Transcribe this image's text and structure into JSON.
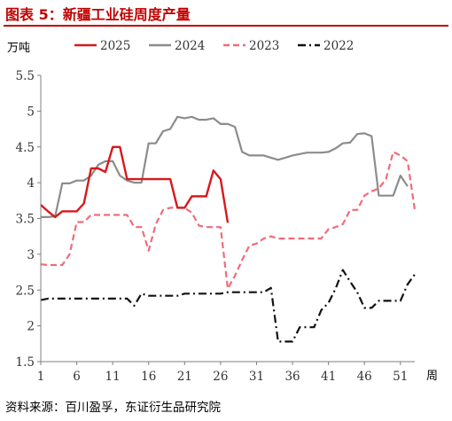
{
  "header": {
    "title": "图表 5：新疆工业硅周度产量",
    "source": "资料来源：百川盈孚，东证衍生品研究院"
  },
  "chart_data": {
    "type": "line",
    "title": "",
    "xlabel": "周",
    "ylabel": "万吨",
    "xlim": [
      1,
      53
    ],
    "ylim": [
      1.5,
      5.5
    ],
    "x_ticks": [
      1,
      6,
      11,
      16,
      21,
      26,
      31,
      36,
      41,
      46,
      51
    ],
    "y_ticks": [
      1.5,
      2,
      2.5,
      3,
      3.5,
      4,
      4.5,
      5,
      5.5
    ],
    "legend_position": "top",
    "grid": false,
    "series": [
      {
        "name": "2025",
        "color": "#d7191c",
        "dash": "solid",
        "x": [
          1,
          2,
          3,
          4,
          5,
          6,
          7,
          8,
          9,
          10,
          11,
          12,
          13,
          14,
          15,
          16,
          17,
          18,
          19,
          20,
          21,
          22,
          23,
          24,
          25,
          26,
          27
        ],
        "y": [
          3.69,
          3.6,
          3.52,
          3.6,
          3.6,
          3.6,
          3.71,
          4.2,
          4.2,
          4.15,
          4.5,
          4.5,
          4.05,
          4.05,
          4.05,
          4.05,
          4.05,
          4.05,
          4.05,
          3.65,
          3.65,
          3.81,
          3.81,
          3.81,
          4.17,
          4.05,
          3.44
        ]
      },
      {
        "name": "2024",
        "color": "#8c8c8c",
        "dash": "solid",
        "x": [
          1,
          2,
          3,
          4,
          5,
          6,
          7,
          8,
          9,
          10,
          11,
          12,
          13,
          14,
          15,
          16,
          17,
          18,
          19,
          20,
          21,
          22,
          23,
          24,
          25,
          26,
          27,
          28,
          29,
          30,
          31,
          32,
          33,
          34,
          35,
          36,
          37,
          38,
          39,
          40,
          41,
          42,
          43,
          44,
          45,
          46,
          47,
          48,
          49,
          50,
          51,
          52
        ],
        "y": [
          3.52,
          3.52,
          3.53,
          3.99,
          3.99,
          4.03,
          4.03,
          4.1,
          4.25,
          4.3,
          4.3,
          4.1,
          4.03,
          4.0,
          4.0,
          4.55,
          4.55,
          4.72,
          4.75,
          4.92,
          4.9,
          4.92,
          4.88,
          4.88,
          4.9,
          4.82,
          4.82,
          4.78,
          4.43,
          4.38,
          4.38,
          4.38,
          4.35,
          4.32,
          4.35,
          4.38,
          4.4,
          4.42,
          4.42,
          4.42,
          4.43,
          4.48,
          4.55,
          4.56,
          4.68,
          4.69,
          4.65,
          3.82,
          3.82,
          3.82,
          4.1,
          3.95
        ]
      },
      {
        "name": "2023",
        "color": "#f06c7a",
        "dash": "dash",
        "x": [
          1,
          2,
          3,
          4,
          5,
          6,
          7,
          8,
          9,
          10,
          11,
          12,
          13,
          14,
          15,
          16,
          17,
          18,
          19,
          20,
          21,
          22,
          23,
          24,
          25,
          26,
          27,
          28,
          29,
          30,
          31,
          32,
          33,
          34,
          35,
          36,
          37,
          38,
          39,
          40,
          41,
          42,
          43,
          44,
          45,
          46,
          47,
          48,
          49,
          50,
          51,
          52,
          53
        ],
        "y": [
          2.86,
          2.85,
          2.85,
          2.85,
          3.0,
          3.45,
          3.45,
          3.55,
          3.55,
          3.55,
          3.55,
          3.55,
          3.55,
          3.38,
          3.38,
          3.05,
          3.42,
          3.62,
          3.65,
          3.65,
          3.65,
          3.58,
          3.4,
          3.38,
          3.38,
          3.38,
          2.52,
          2.7,
          2.92,
          3.12,
          3.15,
          3.22,
          3.25,
          3.22,
          3.22,
          3.22,
          3.22,
          3.22,
          3.22,
          3.22,
          3.35,
          3.38,
          3.42,
          3.62,
          3.62,
          3.82,
          3.88,
          3.92,
          4.05,
          4.43,
          4.38,
          4.3,
          3.62
        ]
      },
      {
        "name": "2022",
        "color": "#111111",
        "dash": "dashdot",
        "x": [
          1,
          2,
          3,
          4,
          5,
          6,
          7,
          8,
          9,
          10,
          11,
          12,
          13,
          14,
          15,
          16,
          17,
          18,
          19,
          20,
          21,
          22,
          23,
          24,
          25,
          26,
          27,
          28,
          29,
          30,
          31,
          32,
          33,
          34,
          35,
          36,
          37,
          38,
          39,
          40,
          41,
          42,
          43,
          44,
          45,
          46,
          47,
          48,
          49,
          50,
          51,
          52,
          53
        ],
        "y": [
          2.36,
          2.38,
          2.38,
          2.38,
          2.38,
          2.38,
          2.38,
          2.38,
          2.38,
          2.38,
          2.38,
          2.38,
          2.38,
          2.28,
          2.45,
          2.42,
          2.42,
          2.42,
          2.42,
          2.42,
          2.45,
          2.45,
          2.45,
          2.45,
          2.45,
          2.45,
          2.47,
          2.47,
          2.47,
          2.47,
          2.47,
          2.47,
          2.53,
          1.78,
          1.78,
          1.78,
          1.98,
          1.98,
          1.98,
          2.22,
          2.32,
          2.52,
          2.78,
          2.62,
          2.47,
          2.25,
          2.25,
          2.35,
          2.35,
          2.35,
          2.35,
          2.58,
          2.72
        ]
      }
    ]
  }
}
